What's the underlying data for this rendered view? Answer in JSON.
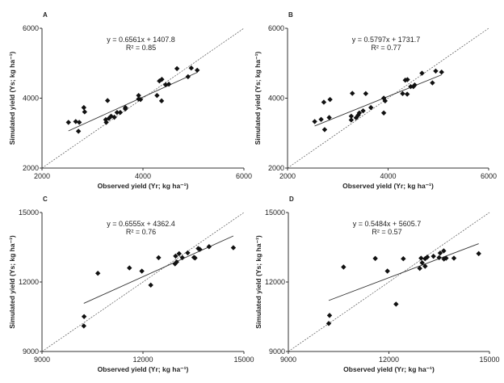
{
  "chart_data": [
    {
      "type": "scatter",
      "panel_label": "A",
      "xlabel": "Observed yield (Yr; kg ha⁻¹)",
      "ylabel": "Simulated yield (Ys; kg ha⁻¹)",
      "xlim": [
        2000,
        6000
      ],
      "ylim": [
        2000,
        6000
      ],
      "xticks": [
        "2000",
        "4000",
        "6000"
      ],
      "yticks": [
        "2000",
        "4000",
        "6000"
      ],
      "equation": "y = 0.6561x + 1407.8",
      "r2_label": "R² = 0.85",
      "fit": {
        "slope": 0.6561,
        "intercept": 1407.8
      },
      "points": [
        [
          2524,
          3308
        ],
        [
          2668,
          3331
        ],
        [
          2738,
          3308
        ],
        [
          2722,
          3054
        ],
        [
          2829,
          3731
        ],
        [
          2845,
          3608
        ],
        [
          3299,
          3931
        ],
        [
          3262,
          3385
        ],
        [
          3273,
          3308
        ],
        [
          3326,
          3423
        ],
        [
          3369,
          3485
        ],
        [
          3433,
          3454
        ],
        [
          3487,
          3592
        ],
        [
          3551,
          3592
        ],
        [
          3652,
          3731
        ],
        [
          3652,
          3692
        ],
        [
          3914,
          4077
        ],
        [
          3914,
          3977
        ],
        [
          3952,
          3962
        ],
        [
          4278,
          4077
        ],
        [
          4369,
          3923
        ],
        [
          4326,
          4492
        ],
        [
          4374,
          4538
        ],
        [
          4449,
          4385
        ],
        [
          4513,
          4400
        ],
        [
          4674,
          4846
        ],
        [
          4893,
          4615
        ],
        [
          4957,
          4862
        ],
        [
          5075,
          4800
        ]
      ]
    },
    {
      "type": "scatter",
      "panel_label": "B",
      "xlabel": "Observed yield (Yr; kg ha⁻¹)",
      "ylabel": "Simulated yield (Ys; kg ha⁻¹)",
      "xlim": [
        2000,
        6000
      ],
      "ylim": [
        2000,
        6000
      ],
      "xticks": [
        "2000",
        "4000",
        "6000"
      ],
      "yticks": [
        "2000",
        "4000",
        "6000"
      ],
      "equation": "y = 0.5797x + 1731.7",
      "r2_label": "R² = 0.77",
      "fit": {
        "slope": 0.5797,
        "intercept": 1731.7
      },
      "points": [
        [
          2540,
          3331
        ],
        [
          2668,
          3392
        ],
        [
          2722,
          3885
        ],
        [
          2738,
          3100
        ],
        [
          2829,
          3446
        ],
        [
          2845,
          3962
        ],
        [
          3289,
          4138
        ],
        [
          3267,
          3485
        ],
        [
          3267,
          3377
        ],
        [
          3364,
          3438
        ],
        [
          3406,
          3515
        ],
        [
          3428,
          3577
        ],
        [
          3503,
          3638
        ],
        [
          3556,
          4131
        ],
        [
          3658,
          3731
        ],
        [
          3914,
          4000
        ],
        [
          3941,
          3923
        ],
        [
          3914,
          3577
        ],
        [
          4289,
          4131
        ],
        [
          4342,
          4515
        ],
        [
          4385,
          4531
        ],
        [
          4380,
          4115
        ],
        [
          4449,
          4331
        ],
        [
          4503,
          4331
        ],
        [
          4529,
          4377
        ],
        [
          4674,
          4715
        ],
        [
          4882,
          4438
        ],
        [
          4947,
          4777
        ],
        [
          5064,
          4746
        ]
      ]
    },
    {
      "type": "scatter",
      "panel_label": "C",
      "xlabel": "Observed yield (Yr; kg ha⁻¹)",
      "ylabel": "Simulated yield (Ys; kg ha⁻¹)",
      "xlim": [
        9000,
        15000
      ],
      "ylim": [
        9000,
        15000
      ],
      "xticks": [
        "9000",
        "12000",
        "15000"
      ],
      "yticks": [
        "9000",
        "12000",
        "15000"
      ],
      "equation": "y = 0.6555x + 4362.4",
      "r2_label": "R² = 0.76",
      "fit": {
        "slope": 0.6555,
        "intercept": 4362.4
      },
      "points": [
        [
          10243,
          10102
        ],
        [
          10251,
          10508
        ],
        [
          10660,
          12376
        ],
        [
          11598,
          12608
        ],
        [
          11967,
          12469
        ],
        [
          12232,
          11866
        ],
        [
          12465,
          13049
        ],
        [
          12970,
          13119
        ],
        [
          12953,
          12784
        ],
        [
          13002,
          12865
        ],
        [
          13074,
          13224
        ],
        [
          13170,
          13049
        ],
        [
          13330,
          13259
        ],
        [
          13515,
          13061
        ],
        [
          13547,
          13038
        ],
        [
          13643,
          13444
        ],
        [
          13691,
          13410
        ],
        [
          13964,
          13526
        ],
        [
          14686,
          13480
        ]
      ]
    },
    {
      "type": "scatter",
      "panel_label": "D",
      "xlabel": "Observed yield (Yr; kg ha⁻¹)",
      "ylabel": "Simulated yield (Ys; kg ha⁻¹)",
      "xlim": [
        9000,
        15000
      ],
      "ylim": [
        9000,
        15000
      ],
      "xticks": [
        "9000",
        "12000",
        "15000"
      ],
      "yticks": [
        "9000",
        "12000",
        "15000"
      ],
      "equation": "y = 0.5484x + 5605.7",
      "r2_label": "R² = 0.57",
      "fit": {
        "slope": 0.5484,
        "intercept": 5605.7
      },
      "points": [
        [
          10205,
          10209
        ],
        [
          10229,
          10557
        ],
        [
          10647,
          12645
        ],
        [
          11594,
          13016
        ],
        [
          11956,
          12471
        ],
        [
          12213,
          11044
        ],
        [
          12430,
          13005
        ],
        [
          12920,
          12587
        ],
        [
          12960,
          13028
        ],
        [
          12992,
          12830
        ],
        [
          13080,
          12680
        ],
        [
          13080,
          13005
        ],
        [
          13145,
          13075
        ],
        [
          13329,
          13110
        ],
        [
          13498,
          13052
        ],
        [
          13530,
          13250
        ],
        [
          13635,
          13343
        ],
        [
          13643,
          12994
        ],
        [
          13707,
          13028
        ],
        [
          13940,
          13028
        ],
        [
          14679,
          13225
        ]
      ]
    }
  ]
}
